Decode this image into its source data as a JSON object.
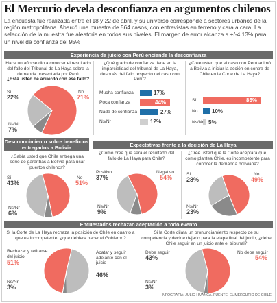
{
  "headline": "El Mercurio devela desconfianza en argumentos chilenos",
  "intro": "La encuesta fue realizada entre el 18 y 22 de abril, y su universo corresponde a sectores urbanos de la región metropolitana. Abarcó una muestra de 564 casos, con entrevistas en terreno y cara a cara. La selección de la muestra fue aleatoria en todos sus niveles. El margen de error alcanza a +/-4,13% para un nivel de confianza del 95%",
  "sections": {
    "s1": "Experiencia de juicio con Perú enciende la desconfianza",
    "s2": "Desconocimiento sobre beneficios entregados a Bolivia",
    "s3": "Expectativas frente a la decisión de La Haya",
    "s4": "Encuestados rechazan aceptación a todo evento"
  },
  "colors": {
    "si": "#bdbdbd",
    "no": "#f06b60",
    "ns": "#8a8a8a",
    "blue": "#1f6fa8",
    "bar_gray": "#cfcfcf"
  },
  "chart_data": [
    {
      "type": "pie",
      "question": "Hace un año se dio a conocer el resultado del fallo del Tribunal de La Haya sobre la demanda presentada por Perú",
      "question_bold": "¿Está usted de acuerdo con ese fallo?",
      "slices": [
        {
          "label": "Sí",
          "value": 22,
          "display": "22%"
        },
        {
          "label": "No",
          "value": 71,
          "display": "71%"
        },
        {
          "label": "Ns/Nr",
          "value": 7,
          "display": "7%"
        }
      ]
    },
    {
      "type": "bar",
      "question": "¿Qué grado de confianza tiene en la imparcialidad del tribunal de La Haya, después del fallo respecto del caso con Perú?",
      "categories": [
        "Mucha confianza",
        "Poca confianza",
        "Nada de confianza",
        "Ns/Nr"
      ],
      "values": [
        17,
        44,
        27,
        12
      ],
      "displays": [
        "17%",
        "44%",
        "27%",
        "12%"
      ]
    },
    {
      "type": "bar",
      "question": "¿Cree usted que el caso con Perú animó a Bolivia a iniciar la acción en contra de Chile en la Corte de La Haya?",
      "categories": [
        "Sí",
        "No",
        "Ns/Nr"
      ],
      "values": [
        85,
        10,
        5
      ],
      "displays": [
        "85%",
        "10%",
        "5%"
      ]
    },
    {
      "type": "pie",
      "question": "¿Sabía usted que Chile entrega una serie de garantías a Bolivia para usar puertos chilenos?",
      "slices": [
        {
          "label": "Sí",
          "value": 43,
          "display": "43%"
        },
        {
          "label": "No",
          "value": 51,
          "display": "51%"
        },
        {
          "label": "Ns/Nr",
          "value": 6,
          "display": "6%"
        }
      ]
    },
    {
      "type": "pie",
      "question": "¿Cómo cree que será el resultado del fallo de La Haya para Chile?",
      "slices": [
        {
          "label": "Positivo",
          "value": 37,
          "display": "37%"
        },
        {
          "label": "Negativo",
          "value": 54,
          "display": "54%"
        },
        {
          "label": "Ns/Nr",
          "value": 9,
          "display": "9%"
        }
      ]
    },
    {
      "type": "pie",
      "question": "¿Cree usted que la Corte aceptará que, como plantea Chile, es incompetente para conocer la demanda boliviana?",
      "slices": [
        {
          "label": "Sí",
          "value": 28,
          "display": "28%"
        },
        {
          "label": "No",
          "value": 49,
          "display": "49%"
        },
        {
          "label": "Ns/Nr",
          "value": 23,
          "display": "23%"
        }
      ]
    },
    {
      "type": "pie",
      "question": "Si la Corte de La Haya rechaza la posición de Chile en cuanto a que es incompetente, ¿qué debiera hacer el Gobierno?",
      "slices": [
        {
          "label": "Rechazar y retirarse del juicio",
          "value": 51,
          "display": "51%"
        },
        {
          "label": "Acatar y seguir adelante con el juicio",
          "value": 46,
          "display": "46%"
        },
        {
          "label": "Ns/Nr",
          "value": 3,
          "display": "3%"
        }
      ]
    },
    {
      "type": "pie",
      "question": "Si la Corte dilata un pronunciamiento respecto de su competencia y decide dejarlo para la etapa final del juicio, ¿debe Chile seguir en un juicio ante el tribunal?",
      "slices": [
        {
          "label": "Debe seguir",
          "value": 43,
          "display": "43%"
        },
        {
          "label": "No debe seguir",
          "value": 54,
          "display": "54%"
        },
        {
          "label": "Ns/Nr",
          "value": 3,
          "display": "3%"
        }
      ]
    }
  ],
  "credit": "INFOGRAFÍA: JULIO HUANCA. FUENTE: EL MERCURIO DE CHILE"
}
